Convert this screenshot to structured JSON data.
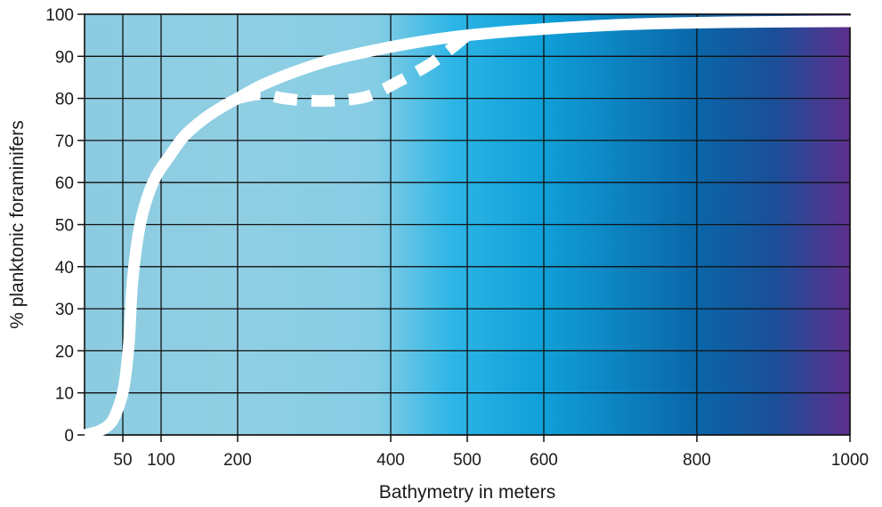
{
  "chart_data": {
    "type": "line",
    "title": "",
    "xlabel": "Bathymetry in meters",
    "ylabel": "% planktonic foraminifers",
    "xlim": [
      0,
      1000
    ],
    "ylim": [
      0,
      100
    ],
    "x_ticks": [
      50,
      100,
      200,
      400,
      500,
      600,
      800,
      1000
    ],
    "y_ticks": [
      0,
      10,
      20,
      30,
      40,
      50,
      60,
      70,
      80,
      90,
      100
    ],
    "grid": true,
    "background_gradient": [
      {
        "x": 0,
        "color": "#8ccbe0"
      },
      {
        "x": 200,
        "color": "#90cfe3"
      },
      {
        "x": 380,
        "color": "#86cde4"
      },
      {
        "x": 480,
        "color": "#2db5e6"
      },
      {
        "x": 600,
        "color": "#109fd8"
      },
      {
        "x": 800,
        "color": "#0a66a8"
      },
      {
        "x": 900,
        "color": "#1a4f98"
      },
      {
        "x": 1000,
        "color": "#5e2f8e"
      }
    ],
    "series": [
      {
        "style": "solid",
        "color": "#ffffff",
        "x": [
          0,
          20,
          35,
          45,
          52,
          58,
          62,
          68,
          75,
          85,
          95,
          110,
          130,
          155,
          180,
          200,
          230,
          270,
          320,
          380,
          440,
          500,
          600,
          700,
          800,
          900,
          1000
        ],
        "y": [
          0,
          1,
          3,
          7,
          12,
          22,
          35,
          45,
          52,
          58,
          62,
          66,
          71,
          75,
          78,
          80,
          83,
          86,
          89,
          91.5,
          93.5,
          95,
          96.5,
          97.5,
          98,
          98.2,
          98.3
        ]
      },
      {
        "style": "dashed",
        "color": "#ffffff",
        "x": [
          200,
          230,
          260,
          290,
          330,
          370,
          410,
          450,
          480,
          500
        ],
        "y": [
          80,
          81,
          80,
          79.5,
          79.5,
          80.5,
          84,
          88,
          92,
          95
        ]
      }
    ]
  }
}
